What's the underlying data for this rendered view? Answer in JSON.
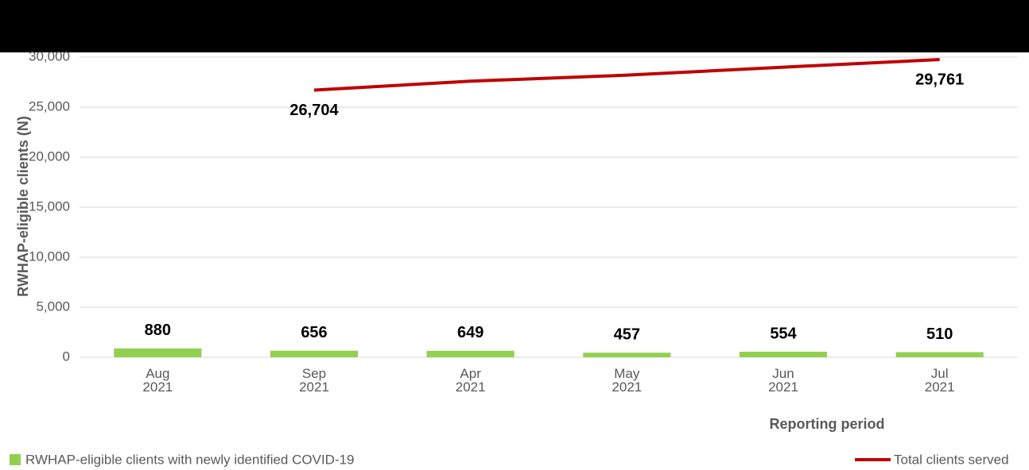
{
  "chart_data": {
    "type": "bar_line",
    "y_label": "RWHAP-eligible clients (N)",
    "x_label": "Reporting period",
    "categories": [
      [
        "Aug",
        "2021"
      ],
      [
        "Sep",
        "2021"
      ],
      [
        "Apr",
        "2021"
      ],
      [
        "May",
        "2021"
      ],
      [
        "Jun",
        "2021"
      ],
      [
        "Jul",
        "2021"
      ]
    ],
    "series": [
      {
        "name": "RWHAP-eligible clients with newly identified COVID-19",
        "type": "bar",
        "color": "#92d050",
        "values": [
          880,
          656,
          649,
          457,
          554,
          510
        ]
      },
      {
        "name": "Total clients served",
        "type": "line",
        "color": "#c00000",
        "values": [
          null,
          26704,
          27600,
          28200,
          29000,
          29761
        ],
        "value_labels": [
          null,
          "26,704",
          null,
          null,
          null,
          "29,761"
        ]
      }
    ],
    "ylim": [
      0,
      30000
    ],
    "yticks": [
      0,
      {
        "value": 5000,
        "label": "5,000"
      },
      {
        "value": 10000,
        "label": "10,000"
      },
      {
        "value": 15000,
        "label": "15,000"
      },
      {
        "value": 20000,
        "label": "20,000"
      },
      {
        "value": 25000,
        "label": "25,000"
      },
      {
        "value": 30000,
        "label": "30,000"
      }
    ],
    "grid": true
  }
}
